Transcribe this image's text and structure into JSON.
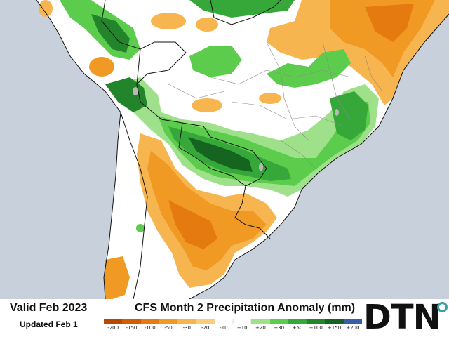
{
  "map": {
    "valid_text": "Valid Feb 2023",
    "updated_text": "Updated Feb 1",
    "title": "CFS Month 2 Precipitation Anomaly (mm)",
    "region": "South America",
    "colors": {
      "ocean": "#c8d0dc",
      "land": "#ffffff",
      "border": "#111111",
      "state_border": "#8a8a8a",
      "lake": "#b8b8b8"
    }
  },
  "legend": {
    "unit": "mm",
    "entries": [
      {
        "label": "-200",
        "color": "#b84700"
      },
      {
        "label": "-150",
        "color": "#d35d00"
      },
      {
        "label": "-100",
        "color": "#e57a10"
      },
      {
        "label": "-50",
        "color": "#f09a24"
      },
      {
        "label": "-30",
        "color": "#f6b54f"
      },
      {
        "label": "-20",
        "color": "#fbcc7c"
      },
      {
        "label": "-10",
        "color": "#ffffff"
      },
      {
        "label": "+10",
        "color": "#ffffff"
      },
      {
        "label": "+20",
        "color": "#9fe08a"
      },
      {
        "label": "+30",
        "color": "#5ccc4c"
      },
      {
        "label": "+50",
        "color": "#36a83a"
      },
      {
        "label": "+100",
        "color": "#22852c"
      },
      {
        "label": "+150",
        "color": "#156420"
      },
      {
        "label": "+200",
        "color": "#3a5fa8"
      }
    ]
  },
  "logo": {
    "text": "DTN",
    "accent_color": "#3aa1a6"
  }
}
